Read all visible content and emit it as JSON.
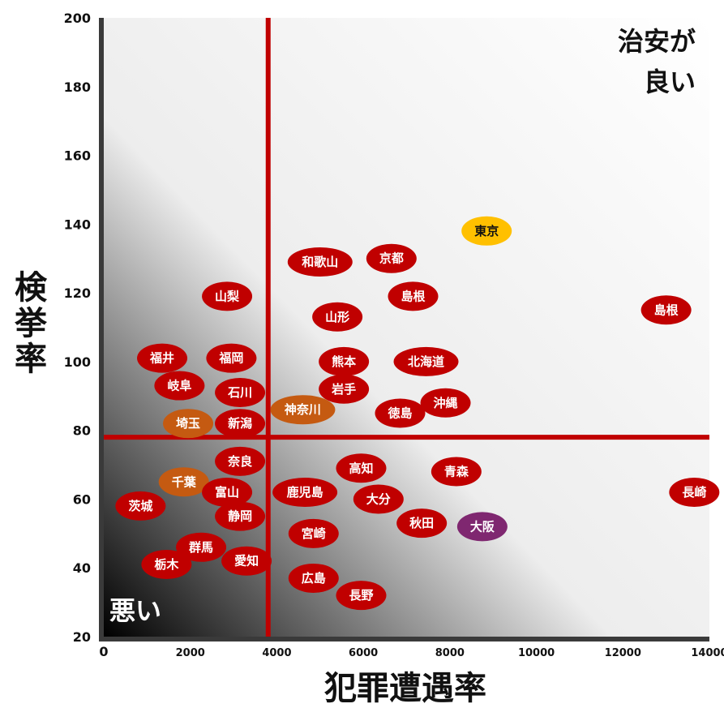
{
  "chart_data": {
    "type": "scatter",
    "xlabel": "犯罪遭遇率",
    "ylabel": "検挙率",
    "xlim": [
      0,
      14000
    ],
    "ylim": [
      20,
      200
    ],
    "x_ticks": [
      "0",
      "2000",
      "4000",
      "6000",
      "8000",
      "10000",
      "12000",
      "14000"
    ],
    "y_ticks": [
      "200",
      "180",
      "160",
      "140",
      "120",
      "100",
      "80",
      "60",
      "40",
      "20"
    ],
    "reference_lines": {
      "x": 3800,
      "y": 78
    },
    "annotations": [
      {
        "text": "治安が",
        "position": "top-right"
      },
      {
        "text": "良い",
        "position": "top-right"
      },
      {
        "text": "悪い",
        "position": "bottom-left"
      }
    ],
    "colors": {
      "default": "#c00000",
      "orange": "#c55a11",
      "gold": "#ffc000",
      "purple": "#7f2770",
      "reference": "#c00000"
    },
    "points": [
      {
        "label": "東京",
        "x": 8850,
        "y": 138,
        "color": "gold"
      },
      {
        "label": "京都",
        "x": 6650,
        "y": 130,
        "color": "default"
      },
      {
        "label": "和歌山",
        "x": 5000,
        "y": 129,
        "color": "default"
      },
      {
        "label": "島根",
        "x": 7150,
        "y": 119,
        "color": "default"
      },
      {
        "label": "島根",
        "x": 13000,
        "y": 115,
        "color": "default"
      },
      {
        "label": "山梨",
        "x": 2850,
        "y": 119,
        "color": "default"
      },
      {
        "label": "山形",
        "x": 5400,
        "y": 113,
        "color": "default"
      },
      {
        "label": "福井",
        "x": 1350,
        "y": 101,
        "color": "default"
      },
      {
        "label": "福岡",
        "x": 2950,
        "y": 101,
        "color": "default"
      },
      {
        "label": "熊本",
        "x": 5550,
        "y": 100,
        "color": "default"
      },
      {
        "label": "北海道",
        "x": 7450,
        "y": 100,
        "color": "default"
      },
      {
        "label": "岐阜",
        "x": 1750,
        "y": 93,
        "color": "default"
      },
      {
        "label": "石川",
        "x": 3150,
        "y": 91,
        "color": "default"
      },
      {
        "label": "岩手",
        "x": 5550,
        "y": 92,
        "color": "default"
      },
      {
        "label": "沖縄",
        "x": 7900,
        "y": 88,
        "color": "default"
      },
      {
        "label": "神奈川",
        "x": 4600,
        "y": 86,
        "color": "orange"
      },
      {
        "label": "徳島",
        "x": 6850,
        "y": 85,
        "color": "default"
      },
      {
        "label": "埼玉",
        "x": 1950,
        "y": 82,
        "color": "orange"
      },
      {
        "label": "新潟",
        "x": 3150,
        "y": 82,
        "color": "default"
      },
      {
        "label": "奈良",
        "x": 3150,
        "y": 71,
        "color": "default"
      },
      {
        "label": "高知",
        "x": 5950,
        "y": 69,
        "color": "default"
      },
      {
        "label": "青森",
        "x": 8150,
        "y": 68,
        "color": "default"
      },
      {
        "label": "千葉",
        "x": 1850,
        "y": 65,
        "color": "orange"
      },
      {
        "label": "富山",
        "x": 2850,
        "y": 62,
        "color": "default"
      },
      {
        "label": "鹿児島",
        "x": 4650,
        "y": 62,
        "color": "default"
      },
      {
        "label": "長崎",
        "x": 13650,
        "y": 62,
        "color": "default"
      },
      {
        "label": "大分",
        "x": 6350,
        "y": 60,
        "color": "default"
      },
      {
        "label": "茨城",
        "x": 850,
        "y": 58,
        "color": "default"
      },
      {
        "label": "静岡",
        "x": 3150,
        "y": 55,
        "color": "default"
      },
      {
        "label": "秋田",
        "x": 7350,
        "y": 53,
        "color": "default"
      },
      {
        "label": "大阪",
        "x": 8750,
        "y": 52,
        "color": "purple"
      },
      {
        "label": "宮崎",
        "x": 4850,
        "y": 50,
        "color": "default"
      },
      {
        "label": "群馬",
        "x": 2250,
        "y": 46,
        "color": "default"
      },
      {
        "label": "愛知",
        "x": 3300,
        "y": 42,
        "color": "default"
      },
      {
        "label": "栃木",
        "x": 1450,
        "y": 41,
        "color": "default"
      },
      {
        "label": "広島",
        "x": 4850,
        "y": 37,
        "color": "default"
      },
      {
        "label": "長野",
        "x": 5950,
        "y": 32,
        "color": "default"
      }
    ]
  }
}
